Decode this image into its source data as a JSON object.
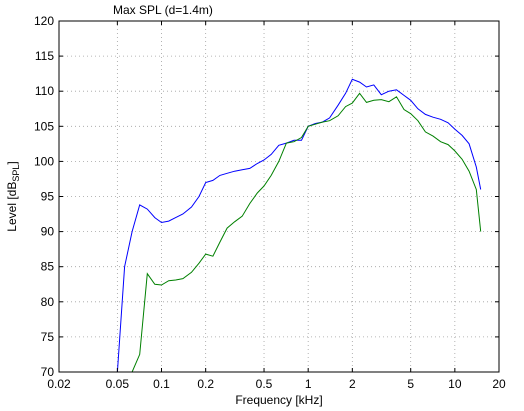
{
  "chart_data": {
    "type": "line",
    "title": "Max SPL (d=1.4m)",
    "xlabel": "Frequency [kHz]",
    "ylabel": "Level [dB",
    "ylabel_sub": "SPL",
    "ylabel_end": "]",
    "x_scale": "log",
    "xlim": [
      0.02,
      20
    ],
    "ylim": [
      70,
      120
    ],
    "grid": true,
    "x_ticks": [
      {
        "value": 0.02,
        "label": "0.02"
      },
      {
        "value": 0.05,
        "label": "0.05"
      },
      {
        "value": 0.1,
        "label": "0.1"
      },
      {
        "value": 0.2,
        "label": "0.2"
      },
      {
        "value": 0.5,
        "label": "0.5"
      },
      {
        "value": 1,
        "label": "1"
      },
      {
        "value": 2,
        "label": "2"
      },
      {
        "value": 5,
        "label": "5"
      },
      {
        "value": 10,
        "label": "10"
      },
      {
        "value": 20,
        "label": "20"
      }
    ],
    "y_ticks": [
      {
        "value": 70,
        "label": "70"
      },
      {
        "value": 75,
        "label": "75"
      },
      {
        "value": 80,
        "label": "80"
      },
      {
        "value": 85,
        "label": "85"
      },
      {
        "value": 90,
        "label": "90"
      },
      {
        "value": 95,
        "label": "95"
      },
      {
        "value": 100,
        "label": "100"
      },
      {
        "value": 105,
        "label": "105"
      },
      {
        "value": 110,
        "label": "110"
      },
      {
        "value": 115,
        "label": "115"
      },
      {
        "value": 120,
        "label": "120"
      }
    ],
    "series": [
      {
        "color": "#0000ff",
        "x": [
          0.05,
          0.056,
          0.063,
          0.071,
          0.08,
          0.09,
          0.1,
          0.112,
          0.125,
          0.14,
          0.16,
          0.18,
          0.2,
          0.224,
          0.25,
          0.28,
          0.315,
          0.355,
          0.4,
          0.45,
          0.5,
          0.56,
          0.63,
          0.71,
          0.8,
          0.9,
          1.0,
          1.12,
          1.25,
          1.4,
          1.6,
          1.8,
          2.0,
          2.24,
          2.5,
          2.8,
          3.15,
          3.55,
          4.0,
          4.5,
          5.0,
          5.6,
          6.3,
          7.1,
          8.0,
          9.0,
          10.0,
          11.2,
          12.5,
          14.0,
          15.0
        ],
        "y": [
          70,
          85,
          90,
          93.8,
          93.2,
          92,
          91.3,
          91.5,
          92,
          92.5,
          93.5,
          95,
          97,
          97.3,
          98,
          98.3,
          98.6,
          98.8,
          99,
          99.7,
          100.2,
          101,
          102.3,
          102.6,
          103,
          103,
          105,
          105.4,
          105.6,
          106.2,
          108,
          109.7,
          111.7,
          111.3,
          110.6,
          110.9,
          109.5,
          110,
          110.2,
          109.4,
          108.7,
          107.5,
          106.7,
          106.3,
          106,
          105.5,
          104.6,
          103.7,
          102.5,
          99.2,
          96
        ]
      },
      {
        "color": "#008000",
        "x": [
          0.063,
          0.071,
          0.08,
          0.09,
          0.1,
          0.112,
          0.125,
          0.14,
          0.16,
          0.18,
          0.2,
          0.224,
          0.25,
          0.28,
          0.315,
          0.355,
          0.4,
          0.45,
          0.5,
          0.56,
          0.63,
          0.71,
          0.8,
          0.9,
          1.0,
          1.12,
          1.25,
          1.4,
          1.6,
          1.8,
          2.0,
          2.24,
          2.5,
          2.8,
          3.15,
          3.55,
          4.0,
          4.5,
          5.0,
          5.6,
          6.3,
          7.1,
          8.0,
          9.0,
          10.0,
          11.2,
          12.5,
          14.0,
          15.0
        ],
        "y": [
          70,
          72.5,
          84,
          82.5,
          82.4,
          83,
          83.1,
          83.3,
          84.2,
          85.5,
          86.8,
          86.5,
          88.5,
          90.5,
          91.4,
          92.2,
          94,
          95.5,
          96.5,
          98,
          100,
          102.6,
          102.8,
          103.4,
          105,
          105.3,
          105.6,
          105.8,
          106.5,
          107.8,
          108.3,
          109.7,
          108.4,
          108.7,
          108.8,
          108.5,
          109.2,
          107.4,
          106.8,
          105.8,
          104.2,
          103.6,
          102.8,
          102.4,
          101.5,
          100.3,
          98.6,
          96,
          90
        ]
      }
    ]
  }
}
